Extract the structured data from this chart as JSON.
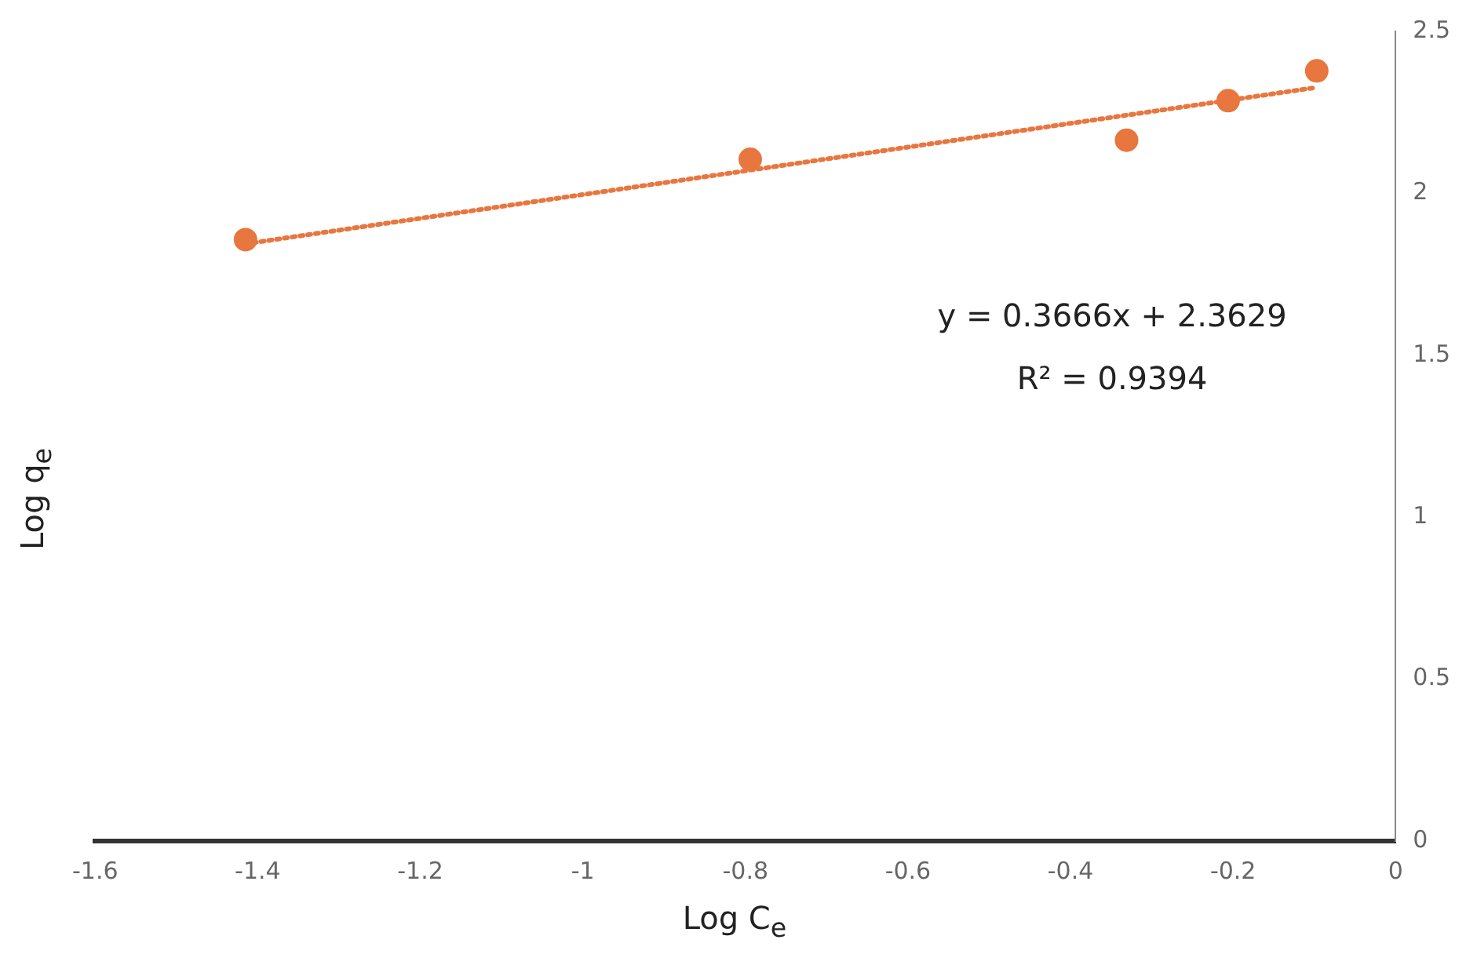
{
  "chart_data": {
    "type": "scatter",
    "xlabel": "Log C$_{e}$",
    "ylabel": "Log q$_{e}$",
    "xlim": [
      -1.6,
      0
    ],
    "xticks": [
      -1.6,
      -1.4,
      -1.2,
      -1,
      -0.8,
      -0.6,
      -0.4,
      -0.2,
      0
    ],
    "ylim": [
      0,
      2.5
    ],
    "yticks": [
      0,
      0.5,
      1,
      1.5,
      2,
      2.5
    ],
    "grid": false,
    "legend": false,
    "marker": "circle",
    "series": [
      {
        "color": "#e8763f",
        "x": [
          -1.415,
          -0.794,
          -0.331,
          -0.206,
          -0.097
        ],
        "values": [
          1.857,
          2.105,
          2.164,
          2.286,
          2.378
        ]
      },
      {
        "type": "line",
        "marker": "none",
        "color": "#e8763f",
        "line_style": "dotted",
        "x": [
          -1.415,
          -0.097
        ],
        "values": [
          1.844,
          2.327
        ]
      }
    ],
    "annotations": [
      "y = 0.3666x + 2.3629",
      "R² = 0.9394"
    ]
  }
}
